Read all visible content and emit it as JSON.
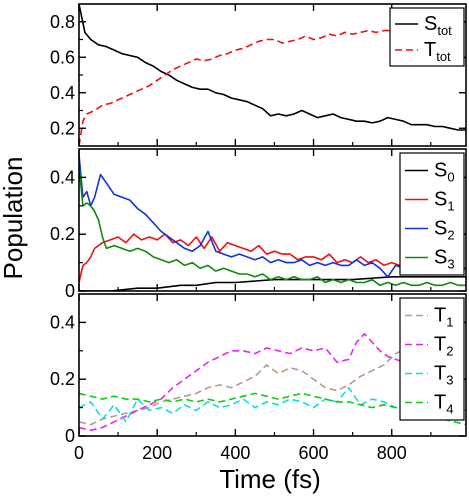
{
  "chart_data": [
    {
      "type": "line",
      "panel": "top",
      "xlim": [
        0,
        990
      ],
      "ylim": [
        0.1,
        0.9
      ],
      "yticks": [
        0.2,
        0.4,
        0.6,
        0.8
      ],
      "ytick_labels": [
        "0.2",
        "0.4",
        "0.6",
        "0.8"
      ],
      "xticks": [
        0,
        200,
        400,
        600,
        800
      ],
      "legend_position": "top-right",
      "series": [
        {
          "name": "S_tot",
          "label_main": "S",
          "label_sub": "tot",
          "color": "#000000",
          "dash": "solid",
          "x": [
            0,
            15,
            30,
            50,
            70,
            90,
            110,
            130,
            150,
            170,
            190,
            210,
            230,
            250,
            270,
            290,
            310,
            330,
            350,
            370,
            390,
            410,
            430,
            450,
            470,
            490,
            510,
            530,
            550,
            570,
            590,
            610,
            630,
            650,
            670,
            690,
            710,
            730,
            750,
            770,
            790,
            810,
            830,
            850,
            870,
            890,
            910,
            930,
            950,
            970,
            990
          ],
          "y": [
            0.9,
            0.74,
            0.7,
            0.67,
            0.66,
            0.64,
            0.62,
            0.61,
            0.6,
            0.57,
            0.55,
            0.52,
            0.5,
            0.47,
            0.45,
            0.43,
            0.42,
            0.42,
            0.4,
            0.39,
            0.37,
            0.36,
            0.35,
            0.33,
            0.31,
            0.27,
            0.28,
            0.27,
            0.28,
            0.3,
            0.28,
            0.26,
            0.27,
            0.28,
            0.26,
            0.25,
            0.24,
            0.24,
            0.23,
            0.24,
            0.26,
            0.25,
            0.24,
            0.22,
            0.22,
            0.22,
            0.21,
            0.21,
            0.2,
            0.19,
            0.19
          ]
        },
        {
          "name": "T_tot",
          "label_main": "T",
          "label_sub": "tot",
          "color": "#ee1111",
          "dash": "dashed",
          "x": [
            0,
            10,
            20,
            40,
            60,
            80,
            100,
            120,
            140,
            160,
            180,
            200,
            220,
            240,
            260,
            280,
            300,
            320,
            340,
            360,
            380,
            400,
            420,
            440,
            460,
            480,
            500,
            520,
            540,
            560,
            580,
            600,
            620,
            640,
            660,
            680,
            700,
            720,
            740,
            760,
            780,
            800
          ],
          "y": [
            0.1,
            0.24,
            0.28,
            0.3,
            0.33,
            0.34,
            0.36,
            0.38,
            0.4,
            0.42,
            0.44,
            0.47,
            0.5,
            0.53,
            0.55,
            0.57,
            0.59,
            0.58,
            0.59,
            0.61,
            0.62,
            0.64,
            0.65,
            0.67,
            0.69,
            0.7,
            0.7,
            0.68,
            0.69,
            0.7,
            0.72,
            0.7,
            0.71,
            0.73,
            0.72,
            0.74,
            0.73,
            0.74,
            0.75,
            0.74,
            0.75,
            0.75
          ]
        }
      ]
    },
    {
      "type": "line",
      "panel": "middle",
      "xlim": [
        0,
        990
      ],
      "ylim": [
        0,
        0.5
      ],
      "yticks": [
        0,
        0.2,
        0.4
      ],
      "ytick_labels": [
        "0",
        "0.2",
        "0.4"
      ],
      "xticks": [
        0,
        200,
        400,
        600,
        800
      ],
      "legend_position": "top-right",
      "series": [
        {
          "name": "S_0",
          "label_main": "S",
          "label_sub": "0",
          "color": "#000000",
          "dash": "solid",
          "x": [
            0,
            60,
            80,
            150,
            200,
            260,
            300,
            350,
            400,
            500,
            600,
            700,
            800,
            900,
            990
          ],
          "y": [
            0.0,
            0.0,
            0.0,
            0.01,
            0.01,
            0.02,
            0.02,
            0.03,
            0.03,
            0.04,
            0.04,
            0.04,
            0.05,
            0.05,
            0.05
          ]
        },
        {
          "name": "S_1",
          "label_main": "S",
          "label_sub": "1",
          "color": "#ee1111",
          "dash": "solid",
          "x": [
            0,
            10,
            20,
            30,
            40,
            60,
            80,
            100,
            120,
            140,
            160,
            180,
            200,
            220,
            240,
            260,
            280,
            300,
            320,
            340,
            360,
            380,
            400,
            420,
            440,
            460,
            480,
            500,
            520,
            540,
            560,
            580,
            600,
            620,
            640,
            660,
            680,
            700,
            720,
            740,
            760,
            780,
            800,
            820,
            840,
            860,
            880,
            900,
            920,
            940,
            960,
            990
          ],
          "y": [
            0.03,
            0.09,
            0.1,
            0.12,
            0.15,
            0.17,
            0.18,
            0.19,
            0.17,
            0.2,
            0.18,
            0.19,
            0.18,
            0.2,
            0.17,
            0.18,
            0.16,
            0.19,
            0.15,
            0.19,
            0.14,
            0.17,
            0.16,
            0.15,
            0.14,
            0.16,
            0.13,
            0.14,
            0.13,
            0.13,
            0.11,
            0.12,
            0.12,
            0.11,
            0.13,
            0.1,
            0.11,
            0.1,
            0.12,
            0.1,
            0.11,
            0.09,
            0.1,
            0.09,
            0.1,
            0.09,
            0.09,
            0.08,
            0.09,
            0.08,
            0.09,
            0.08
          ]
        },
        {
          "name": "S_2",
          "label_main": "S",
          "label_sub": "2",
          "color": "#1133dd",
          "dash": "solid",
          "x": [
            0,
            10,
            20,
            30,
            40,
            55,
            70,
            90,
            110,
            130,
            150,
            170,
            190,
            210,
            230,
            250,
            270,
            290,
            310,
            330,
            350,
            370,
            390,
            410,
            430,
            450,
            470,
            490,
            510,
            530,
            550,
            570,
            590,
            610,
            630,
            650,
            670,
            690,
            710,
            730,
            750,
            770,
            790,
            810,
            830,
            850,
            870,
            890,
            910,
            930,
            950,
            970,
            990
          ],
          "y": [
            0.48,
            0.33,
            0.35,
            0.3,
            0.33,
            0.41,
            0.38,
            0.34,
            0.33,
            0.32,
            0.29,
            0.27,
            0.24,
            0.21,
            0.19,
            0.17,
            0.15,
            0.14,
            0.16,
            0.21,
            0.14,
            0.13,
            0.12,
            0.13,
            0.12,
            0.11,
            0.12,
            0.1,
            0.11,
            0.1,
            0.1,
            0.11,
            0.09,
            0.1,
            0.09,
            0.1,
            0.09,
            0.09,
            0.11,
            0.09,
            0.1,
            0.08,
            0.05,
            0.09,
            0.08,
            0.07,
            0.09,
            0.08,
            0.08,
            0.06,
            0.09,
            0.07,
            0.08
          ]
        },
        {
          "name": "S_3",
          "label_main": "S",
          "label_sub": "3",
          "color": "#118811",
          "dash": "solid",
          "x": [
            0,
            10,
            20,
            30,
            40,
            50,
            60,
            70,
            90,
            110,
            130,
            150,
            170,
            190,
            210,
            230,
            250,
            270,
            290,
            310,
            330,
            350,
            370,
            390,
            410,
            430,
            450,
            470,
            490,
            510,
            530,
            550,
            570,
            590,
            610,
            630,
            650,
            670,
            690,
            710,
            730,
            750,
            770,
            790,
            810,
            830,
            850,
            870,
            890,
            910,
            930,
            950,
            970,
            990
          ],
          "y": [
            0.44,
            0.3,
            0.31,
            0.3,
            0.28,
            0.25,
            0.19,
            0.15,
            0.16,
            0.15,
            0.14,
            0.15,
            0.14,
            0.12,
            0.11,
            0.1,
            0.11,
            0.09,
            0.1,
            0.08,
            0.09,
            0.07,
            0.08,
            0.07,
            0.06,
            0.06,
            0.05,
            0.06,
            0.04,
            0.05,
            0.04,
            0.05,
            0.04,
            0.04,
            0.05,
            0.03,
            0.04,
            0.03,
            0.04,
            0.03,
            0.03,
            0.04,
            0.02,
            0.03,
            0.02,
            0.03,
            0.02,
            0.02,
            0.03,
            0.02,
            0.02,
            0.03,
            0.02,
            0.02
          ]
        }
      ]
    },
    {
      "type": "line",
      "panel": "bottom",
      "xlim": [
        0,
        990
      ],
      "ylim": [
        0,
        0.5
      ],
      "yticks": [
        0,
        0.2,
        0.4
      ],
      "ytick_labels": [
        "0",
        "0.2",
        "0.4"
      ],
      "xticks": [
        0,
        200,
        400,
        600,
        800
      ],
      "xtick_labels": [
        "0",
        "200",
        "400",
        "600",
        "800"
      ],
      "legend_position": "top-right",
      "series": [
        {
          "name": "T_1",
          "label_main": "T",
          "label_sub": "1",
          "color": "#bb9988",
          "dash": "dashed",
          "x": [
            0,
            30,
            60,
            90,
            120,
            150,
            180,
            210,
            240,
            270,
            300,
            330,
            360,
            390,
            420,
            450,
            480,
            510,
            540,
            570,
            600,
            630,
            660,
            690,
            720,
            750,
            780,
            810,
            840,
            870,
            900
          ],
          "y": [
            0.05,
            0.04,
            0.06,
            0.07,
            0.08,
            0.09,
            0.1,
            0.12,
            0.13,
            0.14,
            0.15,
            0.17,
            0.18,
            0.17,
            0.19,
            0.21,
            0.25,
            0.22,
            0.24,
            0.23,
            0.2,
            0.17,
            0.16,
            0.18,
            0.21,
            0.23,
            0.25,
            0.29,
            0.31,
            0.27,
            0.24
          ]
        },
        {
          "name": "T_2",
          "label_main": "T",
          "label_sub": "2",
          "color": "#ee22ee",
          "dash": "dashed",
          "x": [
            0,
            30,
            60,
            90,
            120,
            150,
            180,
            210,
            240,
            270,
            300,
            330,
            360,
            390,
            420,
            450,
            480,
            510,
            540,
            570,
            600,
            630,
            660,
            690,
            710,
            730,
            750,
            770,
            790,
            810,
            830,
            850,
            870
          ],
          "y": [
            0.03,
            0.02,
            0.03,
            0.05,
            0.07,
            0.09,
            0.11,
            0.13,
            0.17,
            0.2,
            0.23,
            0.26,
            0.28,
            0.3,
            0.3,
            0.29,
            0.31,
            0.3,
            0.29,
            0.31,
            0.3,
            0.31,
            0.26,
            0.27,
            0.33,
            0.36,
            0.33,
            0.3,
            0.28,
            0.27,
            0.26,
            0.27,
            0.26
          ]
        },
        {
          "name": "T_3",
          "label_main": "T",
          "label_sub": "3",
          "color": "#11dddd",
          "dash": "dashed",
          "x": [
            0,
            30,
            60,
            90,
            120,
            150,
            180,
            210,
            240,
            270,
            300,
            330,
            360,
            390,
            420,
            450,
            480,
            510,
            540,
            570,
            600,
            630,
            660,
            690,
            720,
            750,
            780,
            810,
            840,
            870,
            900,
            930,
            960,
            990
          ],
          "y": [
            0.1,
            0.12,
            0.06,
            0.11,
            0.05,
            0.13,
            0.09,
            0.1,
            0.08,
            0.11,
            0.09,
            0.12,
            0.1,
            0.11,
            0.13,
            0.1,
            0.12,
            0.11,
            0.13,
            0.12,
            0.1,
            0.13,
            0.12,
            0.17,
            0.11,
            0.13,
            0.12,
            0.1,
            0.11,
            0.09,
            0.11,
            0.08,
            0.1,
            0.09
          ]
        },
        {
          "name": "T_4",
          "label_main": "T",
          "label_sub": "4",
          "color": "#11cc11",
          "dash": "dashed",
          "x": [
            0,
            30,
            60,
            90,
            120,
            150,
            180,
            210,
            240,
            270,
            300,
            330,
            360,
            390,
            420,
            450,
            480,
            510,
            540,
            570,
            600,
            630,
            660,
            690,
            720,
            750,
            780,
            810,
            840,
            870,
            900,
            930,
            960,
            990
          ],
          "y": [
            0.15,
            0.14,
            0.13,
            0.14,
            0.13,
            0.13,
            0.12,
            0.13,
            0.12,
            0.13,
            0.12,
            0.13,
            0.12,
            0.13,
            0.14,
            0.15,
            0.14,
            0.13,
            0.14,
            0.15,
            0.14,
            0.13,
            0.12,
            0.12,
            0.11,
            0.1,
            0.11,
            0.1,
            0.09,
            0.08,
            0.07,
            0.06,
            0.05,
            0.04
          ]
        }
      ]
    }
  ],
  "axes": {
    "xlabel": "Time (fs)",
    "ylabel": "Population"
  }
}
